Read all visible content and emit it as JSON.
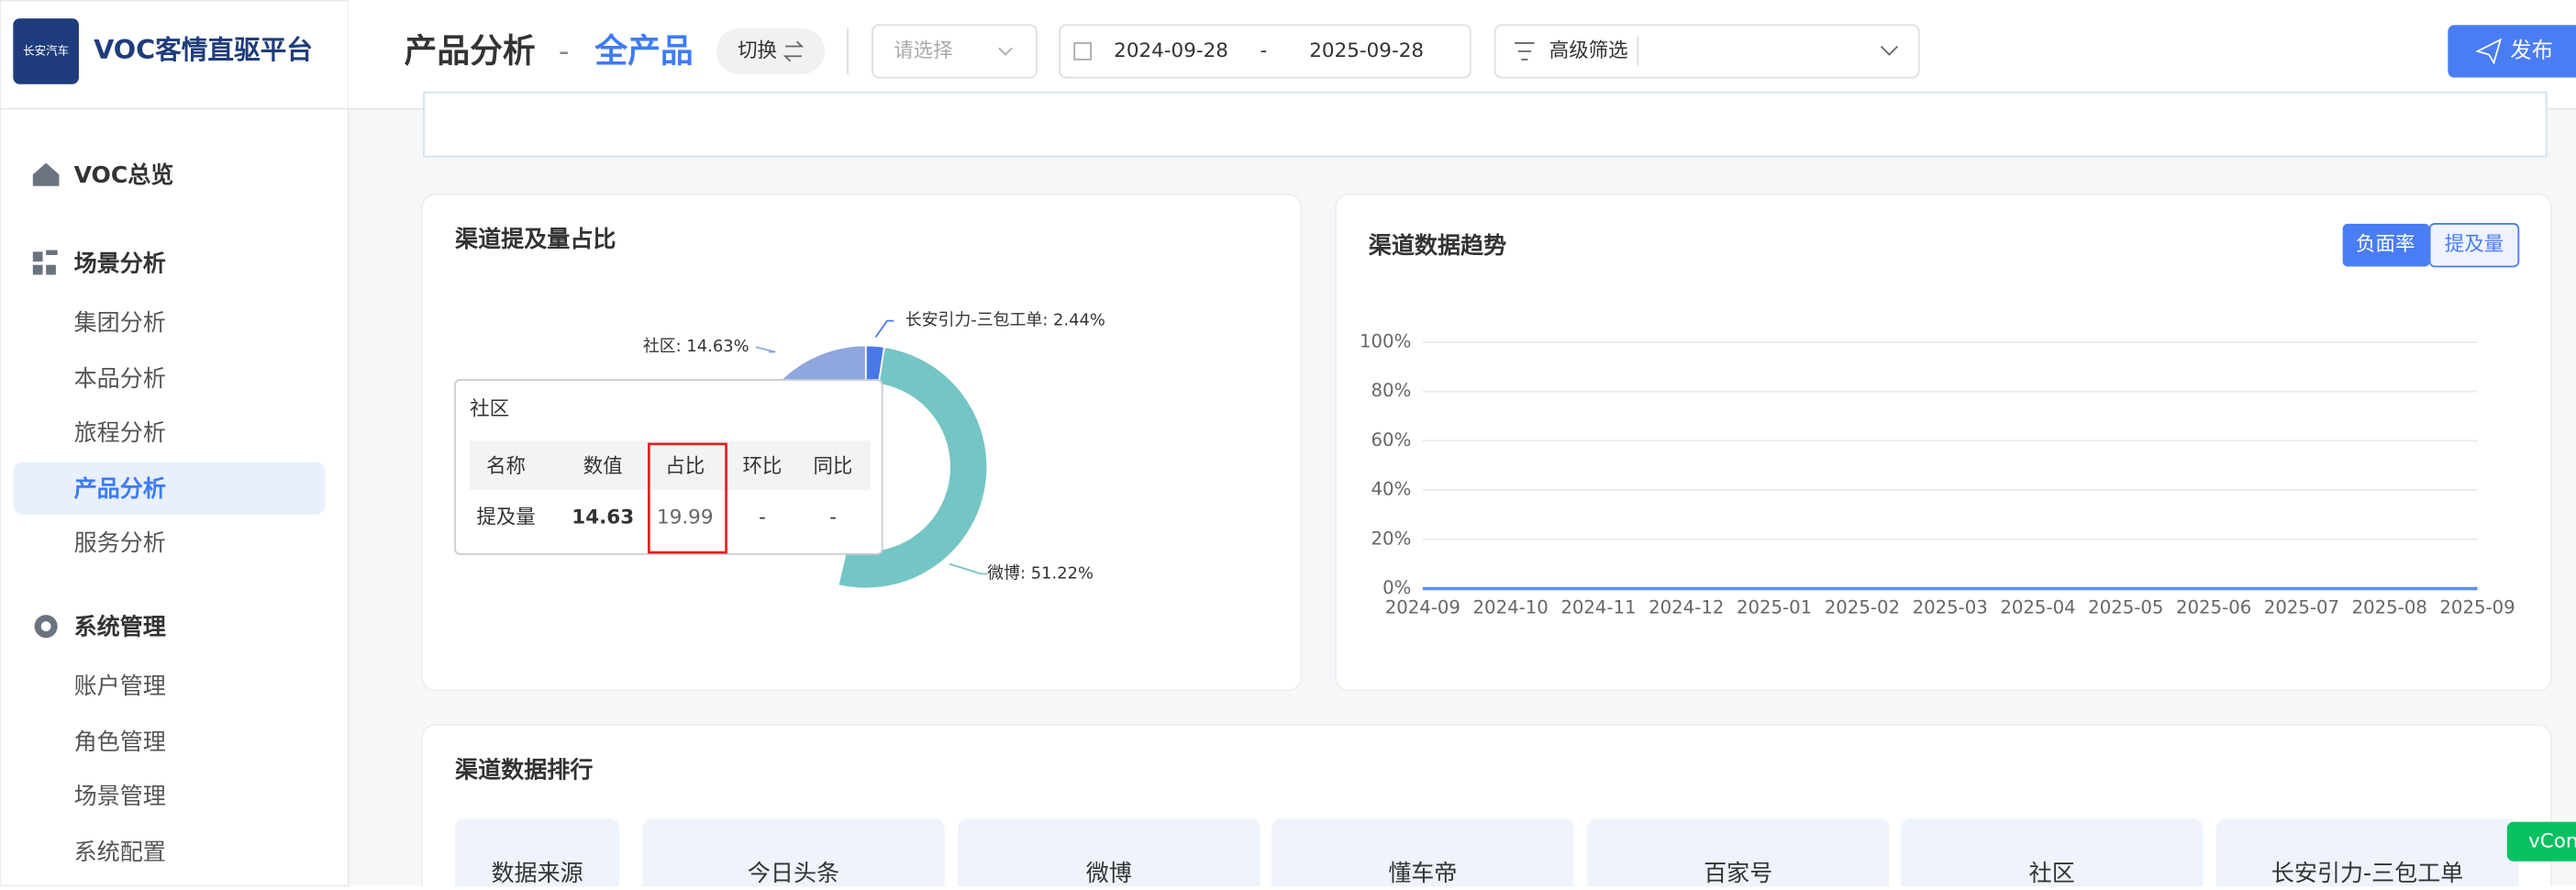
{
  "sidebar": {
    "logo": "长安汽车",
    "brand": "VOC客情直驱平台",
    "menu": [
      {
        "label": "VOC总览"
      },
      {
        "label": "场景分析",
        "children": [
          "集团分析",
          "本品分析",
          "旅程分析",
          "产品分析",
          "服务分析"
        ]
      },
      {
        "label": "系统管理",
        "children": [
          "账户管理",
          "角色管理",
          "场景管理",
          "系统配置"
        ]
      }
    ]
  },
  "header": {
    "page": "产品分析",
    "separator": "-",
    "scope": "全产品",
    "switch": "切换",
    "select_placeholder": "请选择",
    "date_start": "2024-09-28",
    "date_separator": "-",
    "date_end": "2025-09-28",
    "filter": "高级筛选",
    "publish": "发布"
  },
  "chart_data": [
    {
      "type": "pie",
      "title": "渠道提及量占比",
      "categories": [
        "长安引力-三包工单",
        "微博",
        "社区"
      ],
      "values": [
        2.44,
        51.22,
        14.63
      ],
      "value_labels": [
        "长安引力-三包工单: 2.44%",
        "微博: 51.22%",
        "社区: 14.63%"
      ],
      "colors": [
        "#4a78e8",
        "#74c5c5",
        "#8fa6df"
      ]
    },
    {
      "type": "line",
      "title": "渠道数据趋势",
      "toggles": [
        "负面率",
        "提及量"
      ],
      "x": [
        "2024-09",
        "2024-10",
        "2024-11",
        "2024-12",
        "2025-01",
        "2025-02",
        "2025-03",
        "2025-04",
        "2025-05",
        "2025-06",
        "2025-07",
        "2025-08",
        "2025-09"
      ],
      "series": [
        {
          "color": "#5b8ff9",
          "values": [
            0,
            0,
            0,
            0,
            0,
            0,
            0,
            0,
            0,
            0,
            0,
            0,
            0
          ]
        }
      ],
      "ylim": [
        0,
        100
      ],
      "yticks": [
        {
          "value": 0,
          "label": "0%"
        },
        {
          "value": 20,
          "label": "20%"
        },
        {
          "value": 40,
          "label": "40%"
        },
        {
          "value": 60,
          "label": "60%"
        },
        {
          "value": 80,
          "label": "80%"
        },
        {
          "value": 100,
          "label": "100%"
        }
      ],
      "grid": true
    }
  ],
  "tooltip": {
    "title": "社区",
    "columns": [
      "名称",
      "数值",
      "占比",
      "环比",
      "同比"
    ],
    "row": [
      "提及量",
      "14.63",
      "19.99",
      "-",
      "-"
    ]
  },
  "ranking": {
    "title": "渠道数据排行",
    "columns": [
      "数据来源",
      "今日头条",
      "微博",
      "懂车帝",
      "百家号",
      "社区",
      "长安引力-三包工单"
    ]
  },
  "vconsole": "vCon"
}
